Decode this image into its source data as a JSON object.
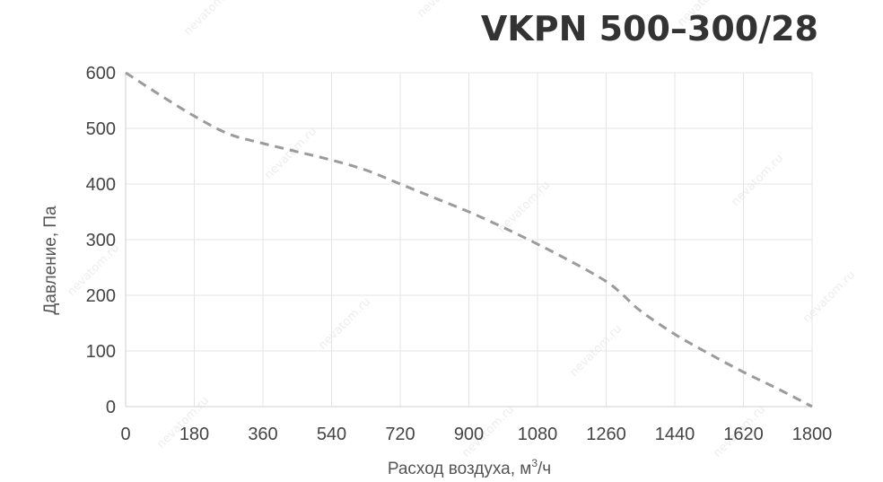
{
  "chart_data": {
    "type": "line",
    "title": "VKPN 500–300/28",
    "xlabel": "Расход воздуха, м",
    "xlabel_sup": "3",
    "xlabel_suffix": "/ч",
    "ylabel": "Давление, Па",
    "xlim": [
      0,
      1800
    ],
    "ylim": [
      0,
      600
    ],
    "x_ticks": [
      0,
      180,
      360,
      540,
      720,
      900,
      1080,
      1260,
      1440,
      1620,
      1800
    ],
    "y_ticks": [
      0,
      100,
      200,
      300,
      400,
      500,
      600
    ],
    "grid": true,
    "line_style": "dashed",
    "colors": {
      "curve": "#9b9b9b",
      "title": "#333333",
      "grid": "#e4e4e4"
    },
    "series": [
      {
        "x": [
          0,
          90,
          180,
          270,
          360,
          450,
          540,
          630,
          720,
          810,
          900,
          990,
          1080,
          1170,
          1260,
          1305,
          1350,
          1440,
          1530,
          1620,
          1710,
          1800
        ],
        "y": [
          600,
          560,
          522,
          490,
          473,
          458,
          443,
          425,
          400,
          375,
          350,
          322,
          292,
          260,
          225,
          200,
          172,
          130,
          95,
          62,
          32,
          0
        ]
      }
    ]
  },
  "watermark": "nevatom.ru"
}
